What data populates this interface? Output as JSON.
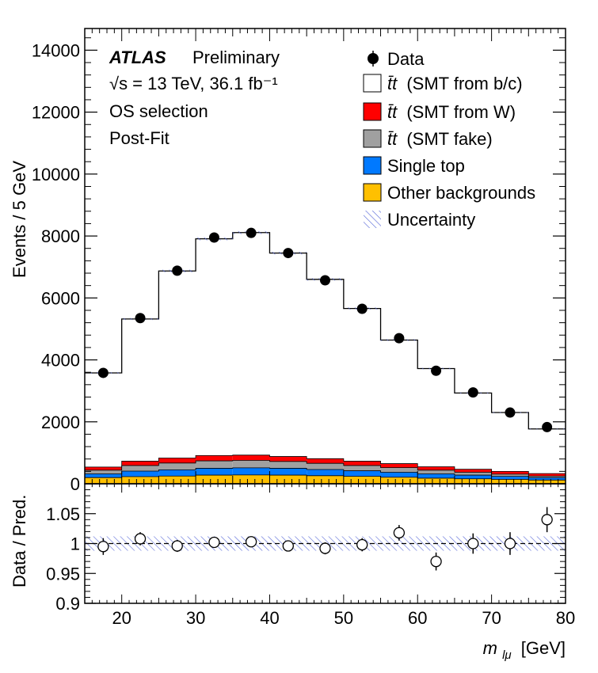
{
  "chart_data": [
    {
      "type": "bar",
      "stacked": true,
      "bin_edges": [
        15,
        20,
        25,
        30,
        35,
        40,
        45,
        50,
        55,
        60,
        65,
        70,
        75,
        80
      ],
      "series": [
        {
          "name": "Other backgrounds",
          "color": "#ffc000",
          "values": [
            200,
            230,
            250,
            280,
            285,
            280,
            260,
            240,
            210,
            180,
            160,
            140,
            120
          ]
        },
        {
          "name": "Single top",
          "color": "#0079ff",
          "values": [
            120,
            180,
            200,
            220,
            230,
            220,
            200,
            180,
            160,
            140,
            120,
            100,
            80
          ]
        },
        {
          "name": "t̄t (SMT fake)",
          "color": "#a0a0a0",
          "values": [
            120,
            180,
            220,
            240,
            240,
            220,
            200,
            170,
            150,
            120,
            90,
            70,
            50
          ]
        },
        {
          "name": "t̄t (SMT from W)",
          "color": "#ff0000",
          "values": [
            100,
            140,
            160,
            170,
            170,
            160,
            150,
            140,
            130,
            110,
            100,
            90,
            80
          ]
        },
        {
          "name": "t̄t (SMT from b/c)",
          "color": "#ffffff",
          "values": [
            3040,
            4590,
            6040,
            7000,
            7185,
            6570,
            5790,
            4930,
            3990,
            3170,
            2460,
            1900,
            1440
          ]
        }
      ],
      "data": {
        "name": "Data",
        "x": [
          17.5,
          22.5,
          27.5,
          32.5,
          37.5,
          42.5,
          47.5,
          52.5,
          57.5,
          62.5,
          67.5,
          72.5,
          77.5
        ],
        "y": [
          3580,
          5350,
          6880,
          7950,
          8100,
          7450,
          6570,
          5650,
          4700,
          3650,
          2950,
          2300,
          1830
        ]
      },
      "xlim": [
        15,
        80
      ],
      "ylim": [
        0,
        14700
      ],
      "y_ticks": [
        0,
        2000,
        4000,
        6000,
        8000,
        10000,
        12000,
        14000
      ],
      "ylabel": "Events / 5 GeV",
      "atlas_label": "ATLAS",
      "atlas_sublabel": "Preliminary",
      "energy_label": "√s = 13 TeV, 36.1 fb⁻¹",
      "selection_label": "OS selection",
      "fit_label": "Post-Fit",
      "legend": {
        "data": "Data",
        "bc_prefix": "t̄t",
        "bc_suffix": "(SMT from b/c)",
        "w_prefix": "t̄t",
        "w_suffix": "(SMT from W)",
        "fake_prefix": "t̄t",
        "fake_suffix": "(SMT fake)",
        "single_top": "Single top",
        "other": "Other backgrounds",
        "uncertainty": "Uncertainty"
      },
      "legend_position": "top-right"
    },
    {
      "type": "scatter",
      "x": [
        17.5,
        22.5,
        27.5,
        32.5,
        37.5,
        42.5,
        47.5,
        52.5,
        57.5,
        62.5,
        67.5,
        72.5,
        77.5
      ],
      "y": [
        0.995,
        1.008,
        0.996,
        1.002,
        1.003,
        0.996,
        0.992,
        0.998,
        1.018,
        0.97,
        1.0,
        1.0,
        1.04
      ],
      "yerr": [
        0.014,
        0.011,
        0.01,
        0.009,
        0.009,
        0.009,
        0.01,
        0.011,
        0.013,
        0.015,
        0.017,
        0.019,
        0.021
      ],
      "xlim": [
        15,
        80
      ],
      "ylim": [
        0.9,
        1.1
      ],
      "y_ticks": [
        0.9,
        0.95,
        1,
        1.05
      ],
      "y_tick_labels": [
        "0.9",
        "0.95",
        "1",
        "1.05"
      ],
      "x_ticks": [
        20,
        30,
        40,
        50,
        60,
        70,
        80
      ],
      "ylabel": "Data / Pred.",
      "xlabel_main": "m",
      "xlabel_sub": "lμ",
      "xlabel_unit": "[GeV]",
      "uncertainty_band": [
        0.988,
        1.012
      ],
      "reference_line": 1
    }
  ]
}
